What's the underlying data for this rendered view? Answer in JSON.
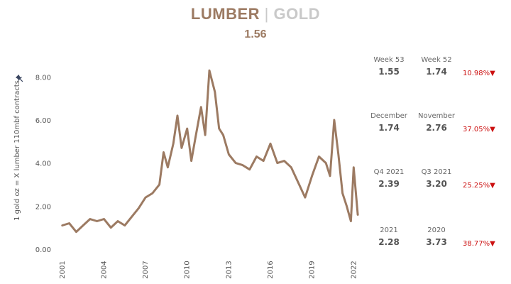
{
  "header": {
    "title_left": "LUMBER",
    "separator": "|",
    "title_right": "GOLD",
    "current_value": "1.56"
  },
  "colors": {
    "accent": "#9c7a62",
    "muted": "#c9c9c9",
    "negative": "#cc1111"
  },
  "chart_data": {
    "type": "line",
    "ylabel": "1 gold oz = X lumber 110mbf contracts",
    "ylim": [
      -0.3,
      9.0
    ],
    "xlim": [
      2000.6,
      2022.6
    ],
    "yticks": [
      "0.00",
      "2.00",
      "4.00",
      "6.00",
      "8.00"
    ],
    "ytick_values": [
      0,
      2,
      4,
      6,
      8
    ],
    "xticks": [
      "2001",
      "2004",
      "2007",
      "2010",
      "2013",
      "2016",
      "2019",
      "2022"
    ],
    "xtick_values": [
      2001,
      2004,
      2007,
      2010,
      2013,
      2016,
      2019,
      2022
    ],
    "grid": false,
    "series": [
      {
        "color": "#9c7a62",
        "x": [
          2001.0,
          2001.5,
          2002.0,
          2002.5,
          2003.0,
          2003.5,
          2004.0,
          2004.5,
          2005.0,
          2005.5,
          2006.0,
          2006.5,
          2007.0,
          2007.5,
          2008.0,
          2008.3,
          2008.6,
          2009.0,
          2009.3,
          2009.6,
          2010.0,
          2010.3,
          2010.6,
          2011.0,
          2011.3,
          2011.6,
          2012.0,
          2012.3,
          2012.6,
          2013.0,
          2013.5,
          2014.0,
          2014.5,
          2015.0,
          2015.5,
          2016.0,
          2016.5,
          2017.0,
          2017.5,
          2018.0,
          2018.5,
          2019.0,
          2019.5,
          2020.0,
          2020.3,
          2020.6,
          2020.9,
          2021.2,
          2021.5,
          2021.8,
          2022.0,
          2022.3
        ],
        "y": [
          1.1,
          1.2,
          0.8,
          1.1,
          1.4,
          1.3,
          1.4,
          1.0,
          1.3,
          1.1,
          1.5,
          1.9,
          2.4,
          2.6,
          3.0,
          4.5,
          3.8,
          4.9,
          6.2,
          4.7,
          5.6,
          4.1,
          5.2,
          6.6,
          5.3,
          8.3,
          7.3,
          5.6,
          5.3,
          4.4,
          4.0,
          3.9,
          3.7,
          4.3,
          4.1,
          4.9,
          4.0,
          4.1,
          3.8,
          3.1,
          2.4,
          3.4,
          4.3,
          4.0,
          3.4,
          6.0,
          4.4,
          2.6,
          2.0,
          1.3,
          3.8,
          1.6
        ]
      }
    ]
  },
  "stats": [
    {
      "a_label": "Week 53",
      "a_value": "1.55",
      "b_label": "Week 52",
      "b_value": "1.74",
      "change": "10.98%",
      "arrow": "▼"
    },
    {
      "a_label": "December",
      "a_value": "1.74",
      "b_label": "November",
      "b_value": "2.76",
      "change": "37.05%",
      "arrow": "▼"
    },
    {
      "a_label": "Q4 2021",
      "a_value": "2.39",
      "b_label": "Q3 2021",
      "b_value": "3.20",
      "change": "25.25%",
      "arrow": "▼"
    },
    {
      "a_label": "2021",
      "a_value": "2.28",
      "b_label": "2020",
      "b_value": "3.73",
      "change": "38.77%",
      "arrow": "▼"
    }
  ]
}
